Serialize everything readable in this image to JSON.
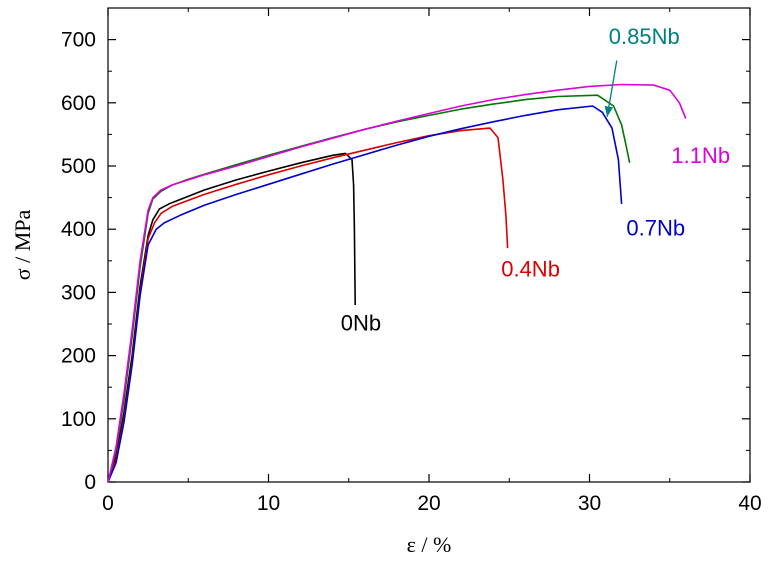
{
  "chart_data": {
    "type": "line",
    "xlabel": "ε / %",
    "ylabel": "σ / MPa",
    "xlim": [
      0,
      40
    ],
    "ylim": [
      0,
      750
    ],
    "xticks": [
      0,
      10,
      20,
      30,
      40
    ],
    "yticks": [
      0,
      100,
      200,
      300,
      400,
      500,
      600,
      700
    ],
    "grid": false,
    "series": [
      {
        "name": "0Nb",
        "color": "#000000",
        "x": [
          0,
          0.5,
          1.0,
          1.5,
          2.0,
          2.5,
          2.8,
          3.2,
          3.8,
          4.5,
          6,
          8,
          10,
          12,
          14,
          14.8,
          15.2,
          15.3,
          15.35,
          15.4
        ],
        "y": [
          0,
          40,
          110,
          200,
          310,
          390,
          415,
          432,
          440,
          447,
          462,
          478,
          492,
          505,
          517,
          520,
          510,
          470,
          400,
          280
        ]
      },
      {
        "name": "0.4Nb",
        "color": "#dd0000",
        "x": [
          0,
          0.5,
          1.0,
          1.5,
          2.0,
          2.5,
          2.9,
          3.3,
          4,
          6,
          8,
          10,
          12,
          14,
          16,
          18,
          20,
          22,
          23.8,
          24.3,
          24.6,
          24.8,
          24.9
        ],
        "y": [
          0,
          35,
          100,
          190,
          300,
          385,
          410,
          425,
          436,
          455,
          471,
          486,
          500,
          513,
          525,
          537,
          548,
          556,
          560,
          545,
          480,
          420,
          370
        ]
      },
      {
        "name": "0.7Nb",
        "color": "#0000cc",
        "x": [
          0,
          0.5,
          1.0,
          1.5,
          2.0,
          2.5,
          3.0,
          3.5,
          4.5,
          6,
          8,
          10,
          12,
          14,
          16,
          18,
          20,
          22,
          24,
          26,
          28,
          30.2,
          30.8,
          31.4,
          31.8,
          32.0
        ],
        "y": [
          0,
          30,
          95,
          185,
          295,
          375,
          400,
          410,
          422,
          438,
          455,
          471,
          487,
          503,
          518,
          533,
          547,
          559,
          570,
          580,
          589,
          595,
          585,
          560,
          510,
          440
        ]
      },
      {
        "name": "0.85Nb",
        "color": "#007700",
        "x": [
          0,
          0.5,
          1.0,
          1.5,
          2.0,
          2.5,
          2.8,
          3.3,
          4,
          5,
          6,
          8,
          10,
          12,
          14,
          16,
          18,
          20,
          22,
          24,
          26,
          28,
          30.5,
          31.5,
          32.0,
          32.3,
          32.5
        ],
        "y": [
          0,
          50,
          130,
          230,
          340,
          425,
          448,
          460,
          470,
          479,
          487,
          502,
          517,
          531,
          545,
          558,
          570,
          580,
          590,
          598,
          605,
          610,
          612,
          595,
          565,
          530,
          505
        ]
      },
      {
        "name": "1.1Nb",
        "color": "#dd00dd",
        "x": [
          0,
          0.5,
          1.0,
          1.5,
          2.0,
          2.5,
          2.8,
          3.3,
          4,
          5,
          6,
          8,
          10,
          12,
          14,
          16,
          18,
          20,
          22,
          24,
          26,
          28,
          30,
          32,
          34,
          35.0,
          35.6,
          36.0
        ],
        "y": [
          0,
          55,
          140,
          240,
          350,
          430,
          450,
          462,
          470,
          478,
          486,
          500,
          515,
          530,
          544,
          558,
          571,
          583,
          595,
          605,
          613,
          620,
          626,
          629,
          628,
          620,
          600,
          575
        ]
      }
    ],
    "annotations": [
      {
        "text": "0Nb",
        "x": 14.5,
        "y": 240,
        "color": "#000000"
      },
      {
        "text": "0.4Nb",
        "x": 24.5,
        "y": 325,
        "color": "#dd0000"
      },
      {
        "text": "0.7Nb",
        "x": 32.3,
        "y": 390,
        "color": "#0000cc"
      },
      {
        "text": "0.85Nb",
        "x": 31.2,
        "y": 693,
        "color": "#008080"
      },
      {
        "text": "1.1Nb",
        "x": 35.1,
        "y": 505,
        "color": "#dd00dd"
      }
    ],
    "arrow": {
      "from": [
        31.7,
        667
      ],
      "to": [
        31.1,
        578
      ],
      "color": "#008080"
    }
  }
}
